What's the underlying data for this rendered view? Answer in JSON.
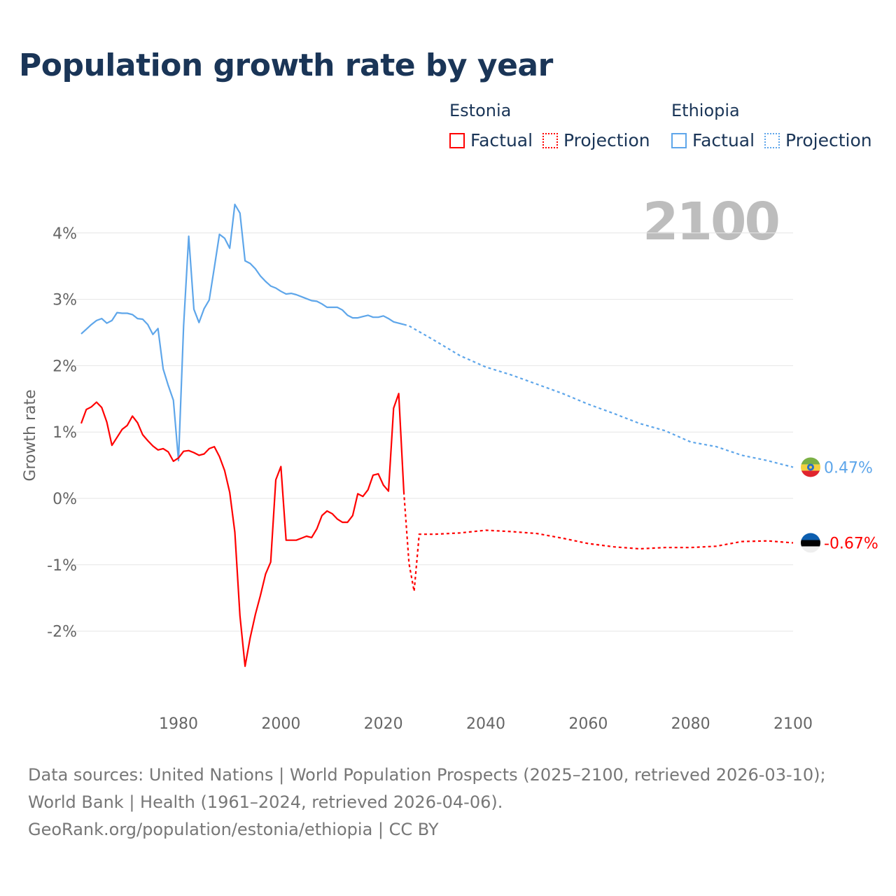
{
  "title": "Population growth rate by year",
  "legend": {
    "groups": [
      {
        "name": "Estonia",
        "factual": "Factual",
        "projection": "Projection",
        "color": "#ff0000"
      },
      {
        "name": "Ethiopia",
        "factual": "Factual",
        "projection": "Projection",
        "color": "#5ea6ea"
      }
    ]
  },
  "year_label": "2100",
  "footer": {
    "sources": "Data sources: United Nations | World Population Prospects (2025–2100, retrieved 2026-03-10); World Bank | Health (1961–2024, retrieved 2026-04-06).",
    "link": "GeoRank.org/population/estonia/ethiopia | CC BY"
  },
  "chart_data": {
    "type": "line",
    "title": "Population growth rate by year",
    "xlabel": "",
    "ylabel": "Growth rate",
    "xlim": [
      1961,
      2100
    ],
    "ylim": [
      -3.0,
      4.6
    ],
    "grid": true,
    "x_ticks": [
      1980,
      2000,
      2020,
      2040,
      2060,
      2080,
      2100
    ],
    "x_tick_labels": [
      "1980",
      "2000",
      "2020",
      "2040",
      "2060",
      "2080",
      "2100"
    ],
    "y_ticks": [
      4,
      3,
      2,
      1,
      0,
      -1,
      -2
    ],
    "y_tick_labels": [
      "4%",
      "3%",
      "2%",
      "1%",
      "0%",
      "-1%",
      "-2%"
    ],
    "series": [
      {
        "name": "Ethiopia",
        "color": "#5ea6ea",
        "end_label": "0.47%",
        "factual": {
          "x": [
            1961,
            1962,
            1963,
            1964,
            1965,
            1966,
            1967,
            1968,
            1969,
            1970,
            1971,
            1972,
            1973,
            1974,
            1975,
            1976,
            1977,
            1978,
            1979,
            1980,
            1981,
            1982,
            1983,
            1984,
            1985,
            1986,
            1987,
            1988,
            1989,
            1990,
            1991,
            1992,
            1993,
            1994,
            1995,
            1996,
            1997,
            1998,
            1999,
            2000,
            2001,
            2002,
            2003,
            2004,
            2005,
            2006,
            2007,
            2008,
            2009,
            2010,
            2011,
            2012,
            2013,
            2014,
            2015,
            2016,
            2017,
            2018,
            2019,
            2020,
            2021,
            2022,
            2023,
            2024
          ],
          "y": [
            2.48,
            2.55,
            2.62,
            2.68,
            2.71,
            2.64,
            2.68,
            2.8,
            2.79,
            2.79,
            2.77,
            2.71,
            2.7,
            2.62,
            2.47,
            2.56,
            1.95,
            1.7,
            1.48,
            0.57,
            2.6,
            3.95,
            2.85,
            2.65,
            2.86,
            2.99,
            3.48,
            3.98,
            3.92,
            3.77,
            4.43,
            4.3,
            3.58,
            3.54,
            3.46,
            3.35,
            3.27,
            3.2,
            3.17,
            3.12,
            3.08,
            3.09,
            3.07,
            3.04,
            3.01,
            2.98,
            2.97,
            2.93,
            2.88,
            2.88,
            2.88,
            2.84,
            2.76,
            2.72,
            2.72,
            2.74,
            2.76,
            2.73,
            2.73,
            2.75,
            2.71,
            2.66,
            2.64,
            2.62
          ]
        },
        "projection": {
          "x": [
            2024,
            2025,
            2030,
            2035,
            2040,
            2045,
            2050,
            2055,
            2060,
            2065,
            2070,
            2075,
            2080,
            2085,
            2090,
            2095,
            2100
          ],
          "y": [
            2.62,
            2.6,
            2.38,
            2.15,
            1.98,
            1.86,
            1.72,
            1.58,
            1.42,
            1.28,
            1.13,
            1.02,
            0.85,
            0.78,
            0.65,
            0.57,
            0.47
          ]
        }
      },
      {
        "name": "Estonia",
        "color": "#ff0000",
        "end_label": "-0.67%",
        "factual": {
          "x": [
            1961,
            1962,
            1963,
            1964,
            1965,
            1966,
            1967,
            1968,
            1969,
            1970,
            1971,
            1972,
            1973,
            1974,
            1975,
            1976,
            1977,
            1978,
            1979,
            1980,
            1981,
            1982,
            1983,
            1984,
            1985,
            1986,
            1987,
            1988,
            1989,
            1990,
            1991,
            1992,
            1993,
            1994,
            1995,
            1996,
            1997,
            1998,
            1999,
            2000,
            2001,
            2002,
            2003,
            2004,
            2005,
            2006,
            2007,
            2008,
            2009,
            2010,
            2011,
            2012,
            2013,
            2014,
            2015,
            2016,
            2017,
            2018,
            2019,
            2020,
            2021,
            2022,
            2023,
            2024
          ],
          "y": [
            1.13,
            1.34,
            1.38,
            1.45,
            1.37,
            1.15,
            0.8,
            0.92,
            1.04,
            1.1,
            1.24,
            1.14,
            0.96,
            0.87,
            0.79,
            0.73,
            0.75,
            0.7,
            0.56,
            0.61,
            0.71,
            0.72,
            0.69,
            0.65,
            0.67,
            0.75,
            0.78,
            0.63,
            0.42,
            0.09,
            -0.51,
            -1.77,
            -2.53,
            -2.1,
            -1.75,
            -1.46,
            -1.14,
            -0.96,
            0.28,
            0.48,
            -0.63,
            -0.63,
            -0.63,
            -0.6,
            -0.57,
            -0.59,
            -0.46,
            -0.26,
            -0.19,
            -0.23,
            -0.31,
            -0.36,
            -0.36,
            -0.26,
            0.07,
            0.03,
            0.13,
            0.35,
            0.37,
            0.2,
            0.11,
            1.36,
            1.58,
            0.1
          ]
        },
        "projection": {
          "x": [
            2024,
            2025,
            2026,
            2027,
            2030,
            2035,
            2040,
            2045,
            2050,
            2055,
            2060,
            2065,
            2070,
            2075,
            2080,
            2085,
            2090,
            2095,
            2100
          ],
          "y": [
            0.1,
            -0.98,
            -1.4,
            -0.54,
            -0.54,
            -0.52,
            -0.48,
            -0.5,
            -0.53,
            -0.6,
            -0.68,
            -0.73,
            -0.76,
            -0.74,
            -0.74,
            -0.72,
            -0.65,
            -0.64,
            -0.67
          ]
        }
      }
    ]
  }
}
